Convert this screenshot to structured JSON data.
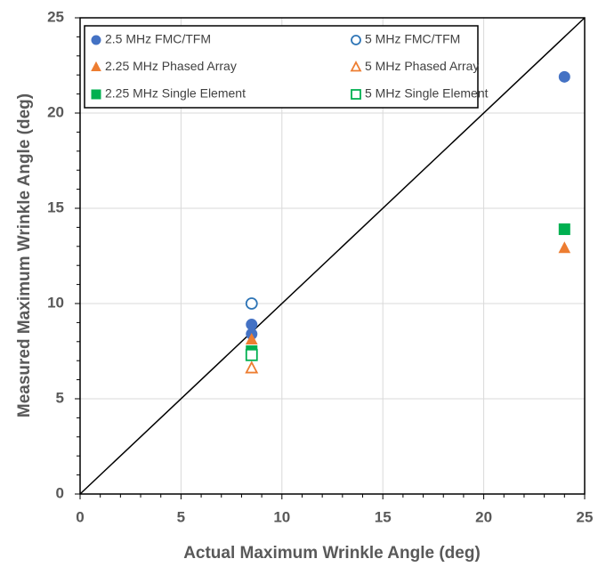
{
  "chart_data": {
    "type": "scatter",
    "x_label": "Actual Maximum Wrinkle Angle (deg)",
    "y_label": "Measured Maximum Wrinkle Angle (deg)",
    "xlim": [
      0,
      25
    ],
    "ylim": [
      0,
      25
    ],
    "xticks": [
      0,
      5,
      10,
      15,
      20,
      25
    ],
    "yticks": [
      0,
      5,
      10,
      15,
      20,
      25
    ],
    "grid": true,
    "minor_ticks": true,
    "identity_line": true,
    "legend": "upper left",
    "series": [
      {
        "name": "2.5 MHz FMC/TFM",
        "color": "#4472c4",
        "marker": "circle",
        "filled": true,
        "x": [
          8.5,
          8.5,
          24
        ],
        "values": [
          8.9,
          8.4,
          21.9
        ]
      },
      {
        "name": "5 MHz FMC/TFM",
        "color": "#2e75b6",
        "marker": "circle",
        "filled": false,
        "x": [
          8.5
        ],
        "values": [
          10.0
        ]
      },
      {
        "name": "2.25 MHz Phased Array",
        "color": "#ed7d31",
        "marker": "triangle",
        "filled": true,
        "x": [
          8.5,
          24
        ],
        "values": [
          8.1,
          12.9
        ]
      },
      {
        "name": "5 MHz Phased Array",
        "color": "#ed7d31",
        "marker": "triangle",
        "filled": false,
        "x": [
          8.5
        ],
        "values": [
          6.6
        ]
      },
      {
        "name": "2.25 MHz Single Element",
        "color": "#00b050",
        "marker": "square",
        "filled": true,
        "x": [
          8.5,
          24
        ],
        "values": [
          7.5,
          13.9
        ]
      },
      {
        "name": "5 MHz Single Element",
        "color": "#00b050",
        "marker": "square",
        "filled": false,
        "x": [
          8.5
        ],
        "values": [
          7.3
        ]
      }
    ]
  }
}
